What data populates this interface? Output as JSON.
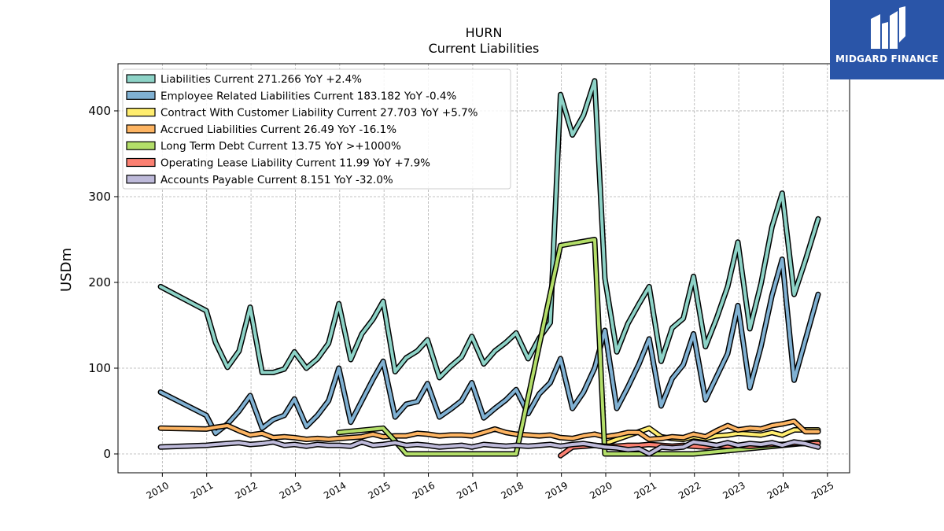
{
  "header": {
    "ticker": "HURN",
    "subtitle": "Current  Liabilities"
  },
  "logo": {
    "text": "MIDGARD FINANCE",
    "icon": "midgard-logo-icon",
    "bg_color": "#2a55a8"
  },
  "chart_data": {
    "type": "line",
    "title": "HURN",
    "subtitle": "Current  Liabilities",
    "xlabel": "",
    "ylabel": "USDm",
    "xlim": [
      2009.0,
      2025.5
    ],
    "ylim": [
      -22,
      455
    ],
    "xticks": [
      "2010",
      "2011",
      "2012",
      "2013",
      "2014",
      "2015",
      "2016",
      "2017",
      "2018",
      "2019",
      "2020",
      "2021",
      "2022",
      "2023",
      "2024",
      "2025"
    ],
    "yticks": [
      0,
      100,
      200,
      300,
      400
    ],
    "grid": true,
    "legend_position": "top-left",
    "series": [
      {
        "name": "Liabilities Current",
        "legend": "Liabilities Current  271.266 YoY +2.4%",
        "color": "#8dd3c7",
        "points": [
          [
            2009.96,
            195
          ],
          [
            2010.99,
            167
          ],
          [
            2011.2,
            130
          ],
          [
            2011.47,
            101
          ],
          [
            2011.73,
            120
          ],
          [
            2011.98,
            171
          ],
          [
            2012.25,
            95
          ],
          [
            2012.5,
            95
          ],
          [
            2012.75,
            99
          ],
          [
            2012.98,
            119
          ],
          [
            2013.25,
            100
          ],
          [
            2013.5,
            111
          ],
          [
            2013.75,
            129
          ],
          [
            2013.98,
            175
          ],
          [
            2014.25,
            110
          ],
          [
            2014.5,
            140
          ],
          [
            2014.75,
            157
          ],
          [
            2014.98,
            178
          ],
          [
            2015.25,
            96
          ],
          [
            2015.5,
            112
          ],
          [
            2015.75,
            120
          ],
          [
            2015.98,
            133
          ],
          [
            2016.25,
            89
          ],
          [
            2016.5,
            102
          ],
          [
            2016.75,
            113
          ],
          [
            2016.98,
            137
          ],
          [
            2017.25,
            105
          ],
          [
            2017.5,
            120
          ],
          [
            2017.75,
            130
          ],
          [
            2017.98,
            141
          ],
          [
            2018.25,
            111
          ],
          [
            2018.5,
            135
          ],
          [
            2018.75,
            153
          ],
          [
            2018.98,
            419
          ],
          [
            2019.25,
            372
          ],
          [
            2019.5,
            395
          ],
          [
            2019.75,
            435
          ],
          [
            2019.98,
            205
          ],
          [
            2020.25,
            119
          ],
          [
            2020.5,
            152
          ],
          [
            2020.75,
            175
          ],
          [
            2020.98,
            195
          ],
          [
            2021.25,
            108
          ],
          [
            2021.5,
            147
          ],
          [
            2021.75,
            158
          ],
          [
            2021.98,
            207
          ],
          [
            2022.25,
            125
          ],
          [
            2022.5,
            158
          ],
          [
            2022.75,
            195
          ],
          [
            2022.98,
            247
          ],
          [
            2023.25,
            146
          ],
          [
            2023.5,
            198
          ],
          [
            2023.75,
            265
          ],
          [
            2023.98,
            304
          ],
          [
            2024.25,
            186
          ],
          [
            2024.5,
            225
          ],
          [
            2024.79,
            274
          ]
        ]
      },
      {
        "name": "Employee Related Liabilities Current",
        "legend": "Employee Related Liabilities Current  183.182 YoY -0.4%",
        "color": "#80b1d3",
        "points": [
          [
            2009.96,
            72
          ],
          [
            2010.99,
            45
          ],
          [
            2011.2,
            24
          ],
          [
            2011.47,
            35
          ],
          [
            2011.73,
            50
          ],
          [
            2011.98,
            68
          ],
          [
            2012.25,
            30
          ],
          [
            2012.5,
            40
          ],
          [
            2012.75,
            45
          ],
          [
            2012.98,
            64
          ],
          [
            2013.25,
            32
          ],
          [
            2013.5,
            45
          ],
          [
            2013.75,
            62
          ],
          [
            2013.98,
            100
          ],
          [
            2014.25,
            37
          ],
          [
            2014.5,
            62
          ],
          [
            2014.75,
            87
          ],
          [
            2014.98,
            108
          ],
          [
            2015.25,
            43
          ],
          [
            2015.5,
            58
          ],
          [
            2015.75,
            61
          ],
          [
            2015.98,
            82
          ],
          [
            2016.25,
            43
          ],
          [
            2016.5,
            52
          ],
          [
            2016.75,
            62
          ],
          [
            2016.98,
            83
          ],
          [
            2017.25,
            42
          ],
          [
            2017.5,
            53
          ],
          [
            2017.75,
            63
          ],
          [
            2017.98,
            75
          ],
          [
            2018.25,
            47
          ],
          [
            2018.5,
            70
          ],
          [
            2018.75,
            83
          ],
          [
            2018.98,
            111
          ],
          [
            2019.25,
            53
          ],
          [
            2019.5,
            72
          ],
          [
            2019.75,
            100
          ],
          [
            2019.98,
            144
          ],
          [
            2020.25,
            53
          ],
          [
            2020.5,
            78
          ],
          [
            2020.75,
            105
          ],
          [
            2020.98,
            134
          ],
          [
            2021.25,
            56
          ],
          [
            2021.5,
            88
          ],
          [
            2021.75,
            104
          ],
          [
            2021.98,
            140
          ],
          [
            2022.25,
            63
          ],
          [
            2022.5,
            90
          ],
          [
            2022.75,
            117
          ],
          [
            2022.98,
            173
          ],
          [
            2023.25,
            77
          ],
          [
            2023.5,
            125
          ],
          [
            2023.75,
            185
          ],
          [
            2023.98,
            227
          ],
          [
            2024.25,
            86
          ],
          [
            2024.79,
            186
          ]
        ]
      },
      {
        "name": "Contract With Customer Liability Current",
        "legend": "Contract With Customer Liability Current  27.703 YoY +5.7%",
        "color": "#ffed6f",
        "points": [
          [
            2019.98,
            12
          ],
          [
            2020.98,
            30
          ],
          [
            2021.25,
            20
          ],
          [
            2021.5,
            18
          ],
          [
            2021.75,
            17
          ],
          [
            2021.98,
            20
          ],
          [
            2022.25,
            18
          ],
          [
            2022.5,
            21
          ],
          [
            2022.75,
            22
          ],
          [
            2022.98,
            24
          ],
          [
            2023.25,
            23
          ],
          [
            2023.5,
            22
          ],
          [
            2023.75,
            25
          ],
          [
            2023.98,
            22
          ],
          [
            2024.25,
            28
          ],
          [
            2024.5,
            28
          ],
          [
            2024.79,
            28
          ]
        ]
      },
      {
        "name": "Accrued Liabilities Current",
        "legend": "Accrued Liabilities Current  26.49 YoY -16.1%",
        "color": "#fdb462",
        "points": [
          [
            2009.96,
            30
          ],
          [
            2010.99,
            29
          ],
          [
            2011.2,
            31
          ],
          [
            2011.47,
            33
          ],
          [
            2011.73,
            27
          ],
          [
            2011.98,
            22
          ],
          [
            2012.25,
            24
          ],
          [
            2012.5,
            19
          ],
          [
            2012.75,
            20
          ],
          [
            2012.98,
            19
          ],
          [
            2013.25,
            17
          ],
          [
            2013.5,
            18
          ],
          [
            2013.75,
            17
          ],
          [
            2013.98,
            18
          ],
          [
            2014.25,
            19
          ],
          [
            2014.5,
            20
          ],
          [
            2014.75,
            23
          ],
          [
            2014.98,
            20
          ],
          [
            2015.25,
            21
          ],
          [
            2015.5,
            21
          ],
          [
            2015.75,
            24
          ],
          [
            2015.98,
            23
          ],
          [
            2016.25,
            21
          ],
          [
            2016.5,
            22
          ],
          [
            2016.75,
            22
          ],
          [
            2016.98,
            21
          ],
          [
            2017.25,
            25
          ],
          [
            2017.5,
            29
          ],
          [
            2017.75,
            25
          ],
          [
            2017.98,
            23
          ],
          [
            2018.25,
            22
          ],
          [
            2018.5,
            21
          ],
          [
            2018.75,
            22
          ],
          [
            2018.98,
            19
          ],
          [
            2019.25,
            18
          ],
          [
            2019.5,
            21
          ],
          [
            2019.75,
            23
          ],
          [
            2019.98,
            20
          ],
          [
            2020.25,
            22
          ],
          [
            2020.5,
            25
          ],
          [
            2020.75,
            25
          ],
          [
            2020.98,
            17
          ],
          [
            2021.25,
            18
          ],
          [
            2021.5,
            20
          ],
          [
            2021.75,
            19
          ],
          [
            2021.98,
            23
          ],
          [
            2022.25,
            20
          ],
          [
            2022.5,
            27
          ],
          [
            2022.75,
            33
          ],
          [
            2022.98,
            28
          ],
          [
            2023.25,
            30
          ],
          [
            2023.5,
            29
          ],
          [
            2023.75,
            33
          ],
          [
            2023.98,
            35
          ],
          [
            2024.25,
            38
          ],
          [
            2024.5,
            26
          ],
          [
            2024.79,
            26
          ]
        ]
      },
      {
        "name": "Long Term Debt Current",
        "legend": "Long Term Debt Current  13.75 YoY >+1000%",
        "color": "#b3de69",
        "points": [
          [
            2013.98,
            25
          ],
          [
            2014.98,
            30
          ],
          [
            2015.25,
            15
          ],
          [
            2015.5,
            0
          ],
          [
            2016.5,
            0
          ],
          [
            2017.98,
            0
          ],
          [
            2018.98,
            243
          ],
          [
            2019.75,
            250
          ],
          [
            2019.98,
            0
          ],
          [
            2020.98,
            0
          ],
          [
            2021.98,
            0
          ],
          [
            2022.98,
            5
          ],
          [
            2023.98,
            10
          ],
          [
            2024.79,
            14
          ]
        ]
      },
      {
        "name": "Operating Lease Liability Current",
        "legend": "Operating Lease Liability Current  11.99 YoY +7.9%",
        "color": "#fb8072",
        "points": [
          [
            2018.98,
            -2
          ],
          [
            2019.25,
            8
          ],
          [
            2019.5,
            9
          ],
          [
            2019.75,
            10
          ],
          [
            2019.98,
            9
          ],
          [
            2020.25,
            9
          ],
          [
            2020.5,
            10
          ],
          [
            2020.75,
            10
          ],
          [
            2020.98,
            11
          ],
          [
            2021.25,
            10
          ],
          [
            2021.5,
            9
          ],
          [
            2021.75,
            10
          ],
          [
            2021.98,
            9
          ],
          [
            2022.25,
            8
          ],
          [
            2022.5,
            10
          ],
          [
            2022.75,
            9
          ],
          [
            2022.98,
            10
          ],
          [
            2023.25,
            9
          ],
          [
            2023.5,
            10
          ],
          [
            2023.75,
            11
          ],
          [
            2023.98,
            11
          ],
          [
            2024.25,
            12
          ],
          [
            2024.5,
            12
          ],
          [
            2024.79,
            12
          ]
        ]
      },
      {
        "name": "Accounts Payable Current",
        "legend": "Accounts Payable Current  8.151 YoY -32.0%",
        "color": "#bebada",
        "points": [
          [
            2009.96,
            8
          ],
          [
            2010.99,
            10
          ],
          [
            2011.2,
            11
          ],
          [
            2011.47,
            12
          ],
          [
            2011.73,
            13
          ],
          [
            2011.98,
            11
          ],
          [
            2012.25,
            12
          ],
          [
            2012.5,
            14
          ],
          [
            2012.75,
            10
          ],
          [
            2012.98,
            11
          ],
          [
            2013.25,
            9
          ],
          [
            2013.5,
            11
          ],
          [
            2013.75,
            10
          ],
          [
            2013.98,
            10
          ],
          [
            2014.25,
            9
          ],
          [
            2014.5,
            14
          ],
          [
            2014.75,
            10
          ],
          [
            2014.98,
            11
          ],
          [
            2015.25,
            13
          ],
          [
            2015.5,
            10
          ],
          [
            2015.75,
            11
          ],
          [
            2015.98,
            10
          ],
          [
            2016.25,
            8
          ],
          [
            2016.5,
            9
          ],
          [
            2016.75,
            10
          ],
          [
            2016.98,
            8
          ],
          [
            2017.25,
            11
          ],
          [
            2017.5,
            10
          ],
          [
            2017.75,
            9
          ],
          [
            2017.98,
            10
          ],
          [
            2018.25,
            9
          ],
          [
            2018.5,
            10
          ],
          [
            2018.75,
            11
          ],
          [
            2018.98,
            9
          ],
          [
            2019.25,
            11
          ],
          [
            2019.5,
            12
          ],
          [
            2019.75,
            10
          ],
          [
            2019.98,
            8
          ],
          [
            2020.25,
            7
          ],
          [
            2020.5,
            5
          ],
          [
            2020.75,
            6
          ],
          [
            2020.98,
            0
          ],
          [
            2021.25,
            8
          ],
          [
            2021.5,
            7
          ],
          [
            2021.75,
            8
          ],
          [
            2021.98,
            14
          ],
          [
            2022.25,
            12
          ],
          [
            2022.5,
            10
          ],
          [
            2022.75,
            13
          ],
          [
            2022.98,
            10
          ],
          [
            2023.25,
            12
          ],
          [
            2023.5,
            11
          ],
          [
            2023.75,
            13
          ],
          [
            2023.98,
            10
          ],
          [
            2024.25,
            14
          ],
          [
            2024.5,
            12
          ],
          [
            2024.79,
            8
          ]
        ]
      }
    ]
  }
}
